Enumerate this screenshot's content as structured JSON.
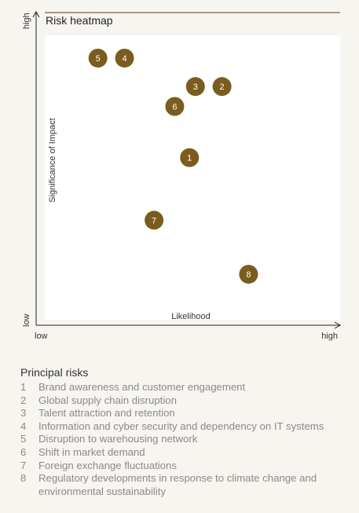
{
  "colors": {
    "background": "#f7f5ef",
    "plot_area": "#ffffff",
    "bubble": "#7a5c1e",
    "title_rule": "#8c7a5a",
    "legend_text": "#8a8a8a"
  },
  "chart_data": {
    "type": "scatter",
    "title": "Risk heatmap",
    "xlabel": "Likelihood",
    "ylabel": "Significance of Impact",
    "x_ticks": {
      "low": "low",
      "high": "high"
    },
    "y_ticks": {
      "low": "low",
      "high": "high"
    },
    "xlim": [
      0,
      1
    ],
    "ylim": [
      0,
      1
    ],
    "grid": false,
    "points": [
      {
        "id": "1",
        "x": 0.49,
        "y": 0.57
      },
      {
        "id": "2",
        "x": 0.6,
        "y": 0.82
      },
      {
        "id": "3",
        "x": 0.51,
        "y": 0.82
      },
      {
        "id": "4",
        "x": 0.27,
        "y": 0.92
      },
      {
        "id": "5",
        "x": 0.18,
        "y": 0.92
      },
      {
        "id": "6",
        "x": 0.44,
        "y": 0.75
      },
      {
        "id": "7",
        "x": 0.37,
        "y": 0.35
      },
      {
        "id": "8",
        "x": 0.69,
        "y": 0.16
      }
    ]
  },
  "legend": {
    "heading": "Principal risks",
    "items": [
      {
        "num": "1",
        "text": "Brand awareness and customer engagement"
      },
      {
        "num": "2",
        "text": "Global supply chain disruption"
      },
      {
        "num": "3",
        "text": "Talent attraction and retention"
      },
      {
        "num": "4",
        "text": "Information and cyber security and dependency on IT systems"
      },
      {
        "num": "5",
        "text": "Disruption to warehousing network"
      },
      {
        "num": "6",
        "text": "Shift in market demand"
      },
      {
        "num": "7",
        "text": "Foreign exchange fluctuations"
      },
      {
        "num": "8",
        "text": "Regulatory developments in response to climate change and environmental sustainability"
      }
    ]
  }
}
